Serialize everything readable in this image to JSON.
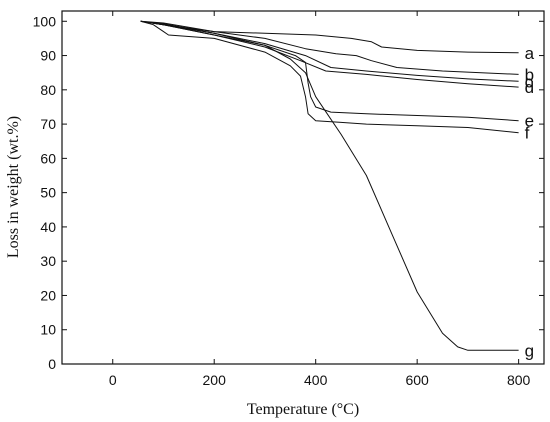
{
  "chart_data": {
    "type": "line",
    "xlabel": "Temperature (°C)",
    "ylabel": "Loss in weight  (wt.%)",
    "xlim": [
      -100,
      850
    ],
    "ylim": [
      0,
      103
    ],
    "xticks": [
      0,
      200,
      400,
      600,
      800
    ],
    "yticks": [
      0,
      10,
      20,
      30,
      40,
      50,
      60,
      70,
      80,
      90,
      100
    ],
    "xtick_labels": [
      "0",
      "200",
      "400",
      "600",
      "800"
    ],
    "ytick_labels": [
      "0",
      "10",
      "20",
      "30",
      "40",
      "50",
      "60",
      "70",
      "80",
      "90",
      "100"
    ],
    "grid": false,
    "line_color": "#111111",
    "series": [
      {
        "label": "a",
        "x": [
          55,
          100,
          200,
          300,
          400,
          470,
          510,
          530,
          600,
          700,
          800
        ],
        "y": [
          100,
          99,
          97,
          96.5,
          96,
          95,
          94,
          92.5,
          91.5,
          91,
          90.8
        ]
      },
      {
        "label": "b",
        "x": [
          55,
          100,
          200,
          300,
          380,
          440,
          480,
          510,
          560,
          650,
          800
        ],
        "y": [
          100,
          99.5,
          97,
          95,
          92,
          90.5,
          90,
          88.5,
          86.5,
          85.5,
          84.5
        ]
      },
      {
        "label": "c",
        "x": [
          55,
          100,
          200,
          300,
          380,
          430,
          500,
          600,
          700,
          800
        ],
        "y": [
          100,
          99.3,
          96.5,
          93.5,
          90,
          86.5,
          85.5,
          84.2,
          83.2,
          82.5
        ]
      },
      {
        "label": "d",
        "x": [
          55,
          100,
          200,
          300,
          370,
          420,
          500,
          600,
          700,
          800
        ],
        "y": [
          100,
          99,
          96,
          92.5,
          88.5,
          85.5,
          84.5,
          83,
          81.8,
          80.8
        ]
      },
      {
        "label": "e",
        "x": [
          55,
          100,
          200,
          300,
          360,
          380,
          385,
          390,
          400,
          430,
          500,
          600,
          700,
          800
        ],
        "y": [
          100,
          99,
          96,
          93,
          90,
          88,
          82,
          78,
          75,
          73.5,
          73,
          72.5,
          72,
          71
        ]
      },
      {
        "label": "f",
        "x": [
          55,
          80,
          100,
          110,
          200,
          300,
          350,
          370,
          380,
          385,
          400,
          450,
          500,
          600,
          700,
          800
        ],
        "y": [
          100,
          99,
          97,
          96,
          95,
          91,
          87,
          84,
          78,
          73,
          71,
          70.5,
          70,
          69.5,
          69,
          67.5
        ]
      },
      {
        "label": "g",
        "x": [
          55,
          100,
          200,
          300,
          350,
          380,
          400,
          450,
          500,
          550,
          600,
          650,
          680,
          700,
          720,
          800
        ],
        "y": [
          100,
          99,
          96.5,
          93,
          89,
          85,
          78,
          67,
          55,
          38,
          21,
          9,
          5,
          4,
          4,
          4
        ]
      }
    ]
  }
}
